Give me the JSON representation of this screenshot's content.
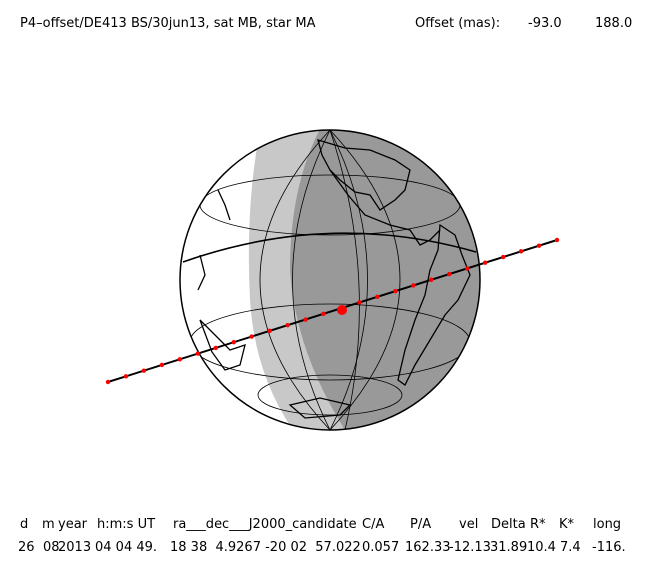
{
  "header": {
    "title": "P4–offset/DE413 BS/30jun13, sat MB, star MA",
    "offset_label": "Offset (mas):",
    "offset_x": "-93.0",
    "offset_y": "188.0"
  },
  "table": {
    "columns": [
      "d",
      "m",
      "year",
      "h:m:s UT",
      "ra___dec___J2000_candidate",
      "C/A",
      "P/A",
      "vel",
      "Delta",
      "R*",
      "K*",
      "long"
    ],
    "rows": [
      [
        "26",
        "08",
        "2013",
        "04 04 49.",
        "18 38  4.9267 -20 02  57.022",
        "0.057",
        "162.33",
        "-12.13",
        "31.89",
        "10.4",
        "7.4",
        "-116."
      ]
    ]
  }
}
